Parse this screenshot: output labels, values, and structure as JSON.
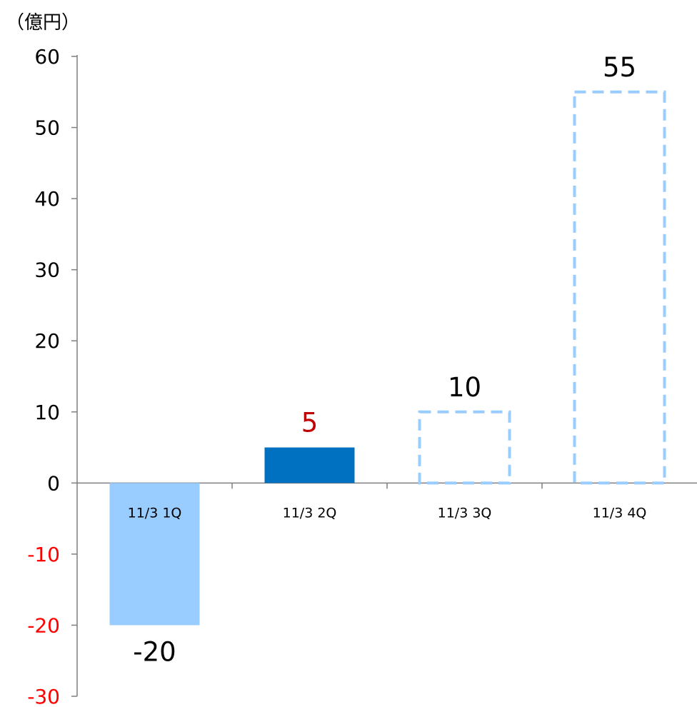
{
  "chart_data": {
    "type": "bar",
    "unit_label": "（億円）",
    "categories": [
      "11/3 1Q",
      "11/3 2Q",
      "11/3 3Q",
      "11/3 4Q"
    ],
    "values": [
      -20,
      5,
      10,
      55
    ],
    "data_labels": [
      "-20",
      "5",
      "10",
      "55"
    ],
    "bar_styles": [
      "solid",
      "solid",
      "dashed-outline",
      "dashed-outline"
    ],
    "bar_colors": [
      "#99CCFF",
      "#0070C0",
      "#99CCFF",
      "#99CCFF"
    ],
    "label_colors": [
      "#000000",
      "#C00000",
      "#000000",
      "#000000"
    ],
    "ylim": [
      -30,
      60
    ],
    "y_ticks": [
      60,
      50,
      40,
      30,
      20,
      10,
      0,
      -10,
      -20,
      -30
    ],
    "y_tick_labels": [
      "60",
      "50",
      "40",
      "30",
      "20",
      "10",
      "0",
      "-10",
      "-20",
      "-30"
    ],
    "negative_tick_color": "#FF0000",
    "positive_tick_color": "#000000",
    "grid": false,
    "legend": "none"
  }
}
